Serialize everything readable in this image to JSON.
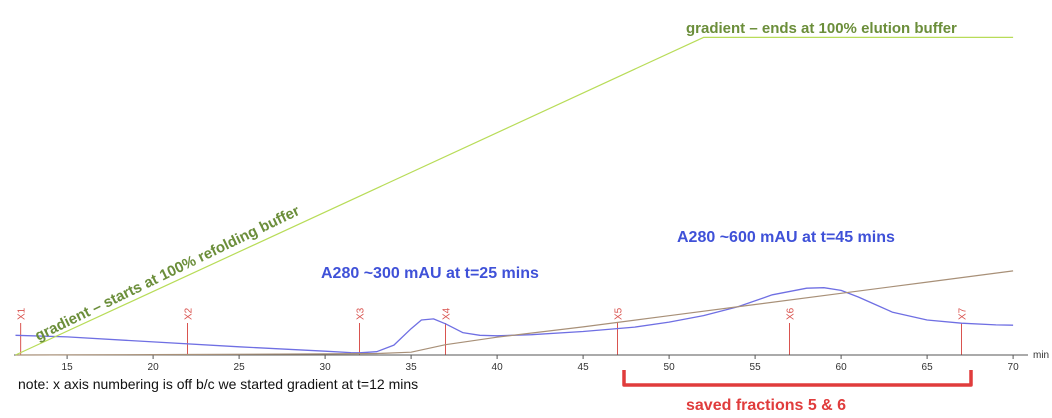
{
  "chart_data": {
    "type": "line",
    "title": "",
    "xlabel": "min",
    "ylabel": "",
    "xlim": [
      12,
      71
    ],
    "x_ticks": [
      15,
      20,
      25,
      30,
      35,
      40,
      45,
      50,
      55,
      60,
      65,
      70
    ],
    "grid": false,
    "series": [
      {
        "key": "a280",
        "color": "#6f6fe3",
        "x": [
          12,
          15,
          20,
          25,
          30,
          31.5,
          32,
          33,
          34,
          35,
          35.6,
          36.3,
          37,
          38,
          39,
          40,
          42,
          45,
          48,
          50,
          52,
          54,
          56,
          58,
          59,
          60,
          61,
          62,
          63,
          65,
          67,
          69,
          70
        ],
        "y": [
          180,
          165,
          120,
          75,
          35,
          22,
          20,
          30,
          90,
          240,
          320,
          330,
          285,
          205,
          180,
          175,
          185,
          215,
          255,
          300,
          360,
          440,
          550,
          610,
          615,
          590,
          530,
          460,
          390,
          320,
          290,
          275,
          272
        ]
      },
      {
        "key": "conductivity",
        "color": "#a89078",
        "x": [
          12,
          20,
          30,
          33,
          35,
          37,
          40,
          45,
          50,
          55,
          60,
          65,
          70
        ],
        "y": [
          0,
          2,
          6,
          8,
          15,
          55,
          95,
          150,
          210,
          270,
          330,
          390,
          450
        ]
      },
      {
        "key": "gradient",
        "color": "#b8dc58",
        "x": [
          12,
          52,
          70
        ],
        "y": [
          0,
          1700,
          1700
        ]
      }
    ],
    "fractions": [
      {
        "label": "X1",
        "x": 12.3
      },
      {
        "label": "X2",
        "x": 22
      },
      {
        "label": "X3",
        "x": 32
      },
      {
        "label": "X4",
        "x": 37
      },
      {
        "label": "X5",
        "x": 47
      },
      {
        "label": "X6",
        "x": 57
      },
      {
        "label": "X7",
        "x": 67
      }
    ],
    "annotations": {
      "gradient_start": "gradient – starts at 100% refolding buffer",
      "gradient_end": "gradient – ends at 100% elution buffer",
      "peak1": "A280 ~300 mAU at t=25 mins",
      "peak2": "A280 ~600 mAU at t=45 mins",
      "saved": "saved fractions 5 & 6",
      "note": "note: x axis numbering is off b/c we started gradient at t=12 mins"
    },
    "colors": {
      "annotation_green": "#6b8e3a",
      "annotation_blue": "#3f51d8",
      "annotation_red": "#e03c3c",
      "bracket_red": "#e03c3c",
      "fraction_marker": "#d9534f"
    }
  }
}
